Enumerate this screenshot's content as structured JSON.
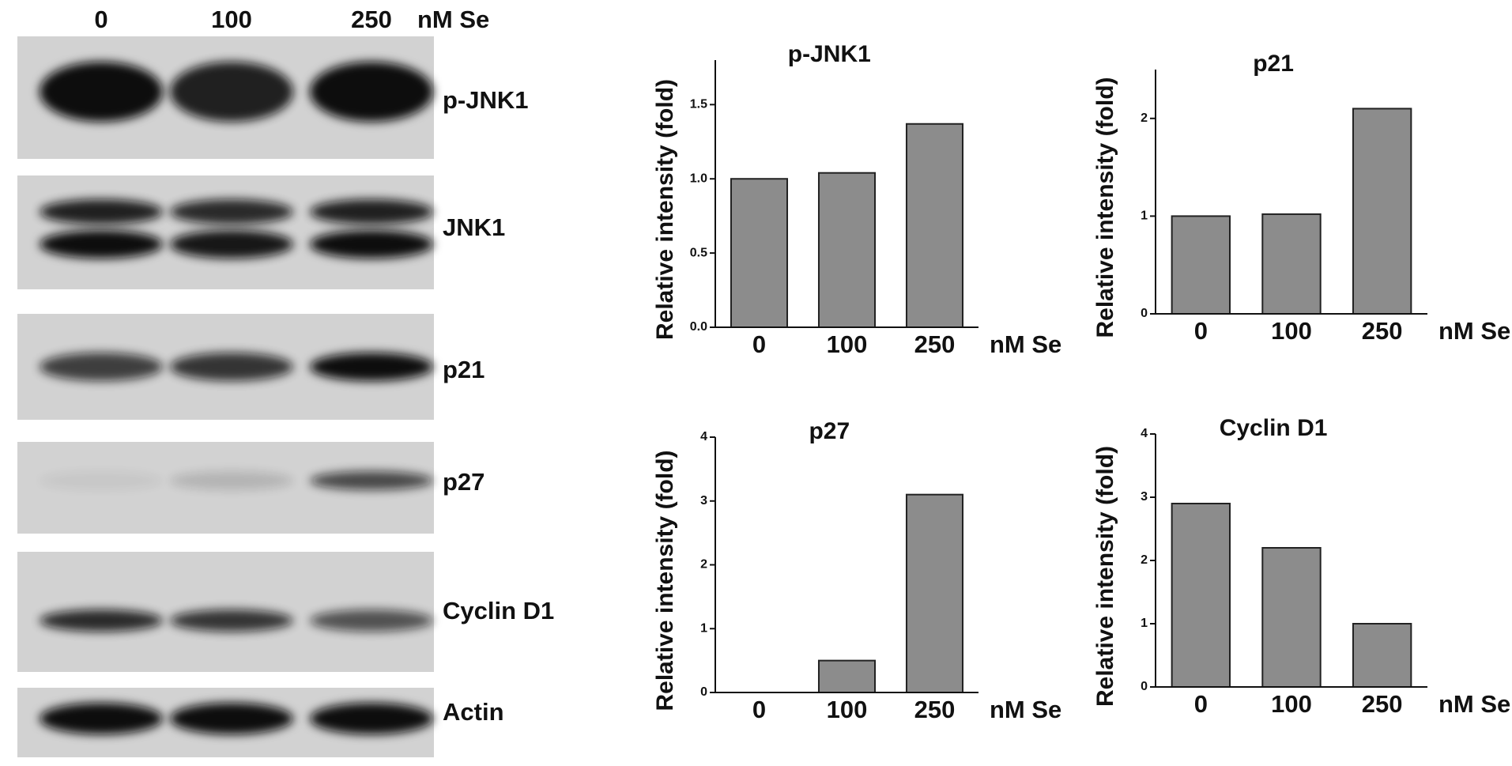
{
  "blot": {
    "lanes": [
      "0",
      "100",
      "250"
    ],
    "unit": "nM Se",
    "bands": [
      "p-JNK1",
      "JNK1",
      "p21",
      "p27",
      "Cyclin D1",
      "Actin"
    ]
  },
  "chart_data": [
    {
      "type": "bar",
      "title": "p-JNK1",
      "categories": [
        "0",
        "100",
        "250"
      ],
      "values": [
        1.0,
        1.04,
        1.37
      ],
      "color": "#8c8c8c",
      "ylim": [
        0,
        1.8
      ],
      "yticks": [
        {
          "value": 0,
          "label": "0.0"
        },
        0.5,
        {
          "value": 1,
          "label": "1.0"
        },
        1.5
      ],
      "ylabel": "Relative intensity (fold)",
      "xlabel": "nM Se"
    },
    {
      "type": "bar",
      "title": "p21",
      "categories": [
        "0",
        "100",
        "250"
      ],
      "values": [
        1.0,
        1.02,
        2.1
      ],
      "color": "#8c8c8c",
      "ylim": [
        0,
        2.5
      ],
      "yticks": [
        0,
        1,
        2
      ],
      "ylabel": "Relative intensity (fold)",
      "xlabel": "nM Se"
    },
    {
      "type": "bar",
      "title": "p27",
      "categories": [
        "0",
        "100",
        "250"
      ],
      "values": [
        0,
        0.5,
        3.1
      ],
      "color": "#8c8c8c",
      "ylim": [
        0,
        4
      ],
      "yticks": [
        0,
        1,
        2,
        3,
        4
      ],
      "ylabel": "Relative intensity (fold)",
      "xlabel": "nM Se"
    },
    {
      "type": "bar",
      "title": "Cyclin D1",
      "categories": [
        "0",
        "100",
        "250"
      ],
      "values": [
        2.9,
        2.2,
        1.0
      ],
      "color": "#8c8c8c",
      "ylim": [
        0,
        4
      ],
      "yticks": [
        0,
        1,
        2,
        3,
        4
      ],
      "ylabel": "Relative intensity (fold)",
      "xlabel": "nM Se"
    }
  ]
}
